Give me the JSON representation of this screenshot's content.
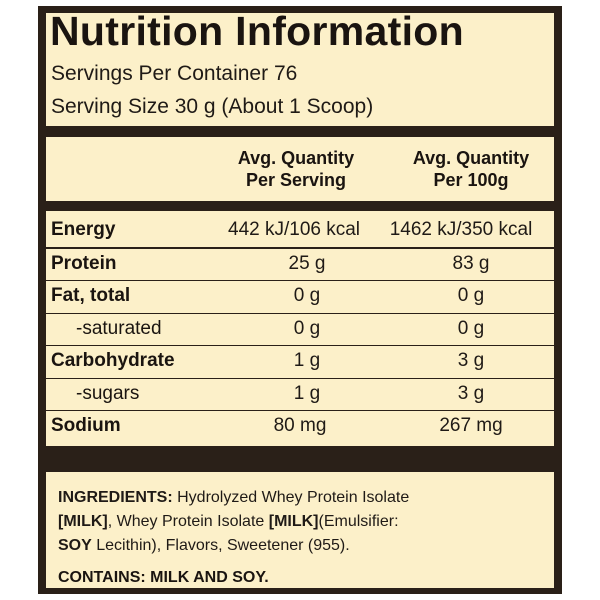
{
  "label": {
    "title": "Nutrition Information",
    "servings_per_container": "Servings Per Container 76",
    "serving_size": "Serving Size 30 g (About 1 Scoop)"
  },
  "columns": {
    "per_serving": [
      "Avg. Quantity",
      "Per Serving"
    ],
    "per_100g": [
      "Avg. Quantity",
      "Per 100g"
    ]
  },
  "rows": [
    {
      "name": "Energy",
      "per_serving": "442 kJ/106 kcal",
      "per_100g": "1462 kJ/350 kcal"
    },
    {
      "name": "Protein",
      "per_serving": "25 g",
      "per_100g": "83 g"
    },
    {
      "name": "Fat, total",
      "per_serving": "0 g",
      "per_100g": "0 g"
    },
    {
      "name": "-saturated",
      "per_serving": "0 g",
      "per_100g": "0 g"
    },
    {
      "name": "Carbohydrate",
      "per_serving": "1 g",
      "per_100g": "3 g"
    },
    {
      "name": "-sugars",
      "per_serving": "1 g",
      "per_100g": "3 g"
    },
    {
      "name": "Sodium",
      "per_serving": "80 mg",
      "per_100g": "267 mg"
    }
  ],
  "ingredients": {
    "heading": "INGREDIENTS:",
    "p1": " Hydrolyzed Whey Protein Isolate",
    "milk1": "[MILK]",
    "p2": ", Whey Protein Isolate ",
    "milk2": "[MILK]",
    "p3": "(Emulsifier:",
    "soy": "SOY",
    "p4": " Lecithin), Flavors, Sweetener (955)."
  },
  "contains": "CONTAINS: MILK AND SOY."
}
